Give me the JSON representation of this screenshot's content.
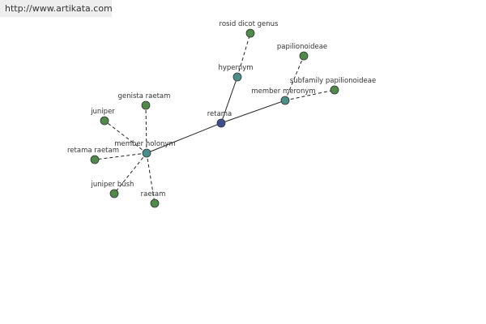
{
  "header": {
    "url": "http://www.artikata.com"
  },
  "nodes": [
    {
      "label": "retama"
    },
    {
      "label": "hypernym"
    },
    {
      "label": "rosid dicot genus"
    },
    {
      "label": "member meronym"
    },
    {
      "label": "papilionoideae"
    },
    {
      "label": "subfamily papilionoideae"
    },
    {
      "label": "member holonym"
    },
    {
      "label": "genista raetam"
    },
    {
      "label": "juniper"
    },
    {
      "label": "retama raetam"
    },
    {
      "label": "juniper bush"
    },
    {
      "label": "raetam"
    }
  ]
}
